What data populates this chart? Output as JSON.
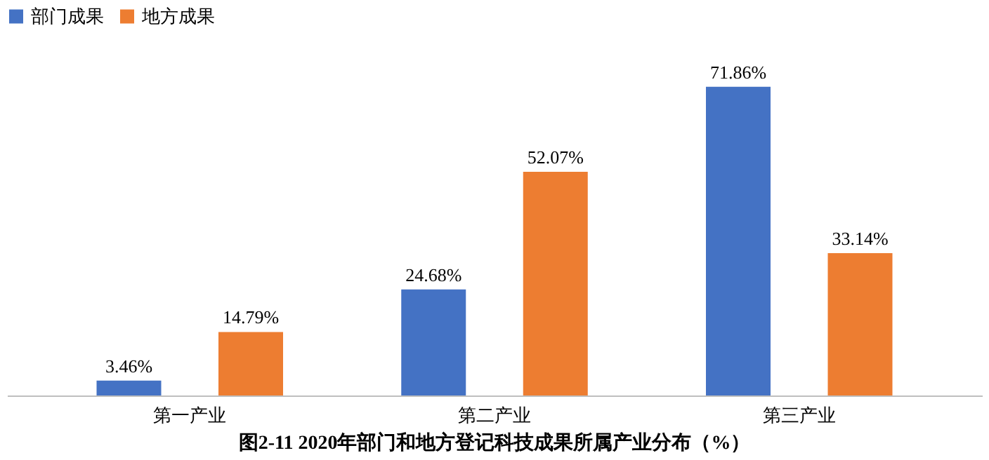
{
  "chart_data": {
    "type": "bar",
    "title": "图2-11  2020年部门和地方登记科技成果所属产业分布（%）",
    "categories": [
      "第一产业",
      "第二产业",
      "第三产业"
    ],
    "series": [
      {
        "name": "部门成果",
        "color": "#4472c4",
        "values": [
          3.46,
          24.68,
          71.86
        ],
        "value_labels": [
          "3.46%",
          "24.68%",
          "71.86%"
        ]
      },
      {
        "name": "地方成果",
        "color": "#ed7d31",
        "values": [
          14.79,
          52.07,
          33.14
        ],
        "value_labels": [
          "14.79%",
          "52.07%",
          "33.14%"
        ]
      }
    ],
    "tick_labels": "x",
    "legend": "top",
    "grid": false
  }
}
